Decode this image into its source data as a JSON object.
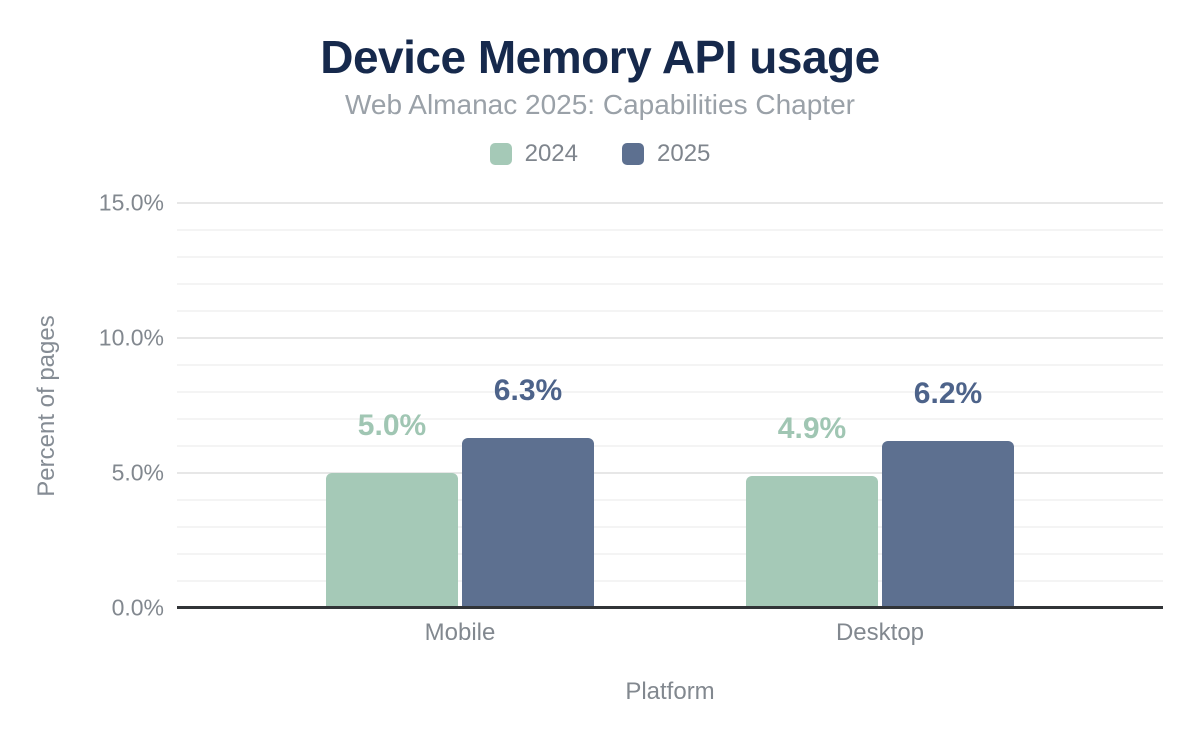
{
  "header": {
    "title": "Device Memory API usage",
    "subtitle": "Web Almanac 2025: Capabilities Chapter"
  },
  "colors": {
    "title": "#16294c",
    "subtitle": "#9aa1a8",
    "axis_text": "#82888f",
    "legend_text": "#7f858d",
    "series_2024": "#a5c9b7",
    "series_2025": "#5d7090",
    "label_2024": "#a0c6b3",
    "label_2025": "#4d638a",
    "grid_minor": "#f4f4f4",
    "grid_major": "#e7e7e7",
    "baseline": "#313437",
    "background": "#ffffff"
  },
  "chart_data": {
    "type": "bar",
    "title": "Device Memory API usage",
    "subtitle": "Web Almanac 2025: Capabilities Chapter",
    "categories": [
      "Mobile",
      "Desktop"
    ],
    "series": [
      {
        "name": "2024",
        "values": [
          5.0,
          4.9
        ],
        "labels": [
          "5.0%",
          "4.9%"
        ],
        "color": "#a5c9b7",
        "label_color": "#a0c6b3"
      },
      {
        "name": "2025",
        "values": [
          6.3,
          6.2
        ],
        "labels": [
          "6.3%",
          "6.2%"
        ],
        "color": "#5d7090",
        "label_color": "#4d638a"
      }
    ],
    "xlabel": "Platform",
    "ylabel": "Percent of pages",
    "ylim": [
      0,
      15
    ],
    "yticks": [
      {
        "value": 0,
        "label": "0.0%"
      },
      {
        "value": 5,
        "label": "5.0%"
      },
      {
        "value": 10,
        "label": "10.0%"
      },
      {
        "value": 15,
        "label": "15.0%"
      }
    ],
    "grid": "horizontal: minor every 1%, major every 5%",
    "legend_position": "top-center"
  }
}
